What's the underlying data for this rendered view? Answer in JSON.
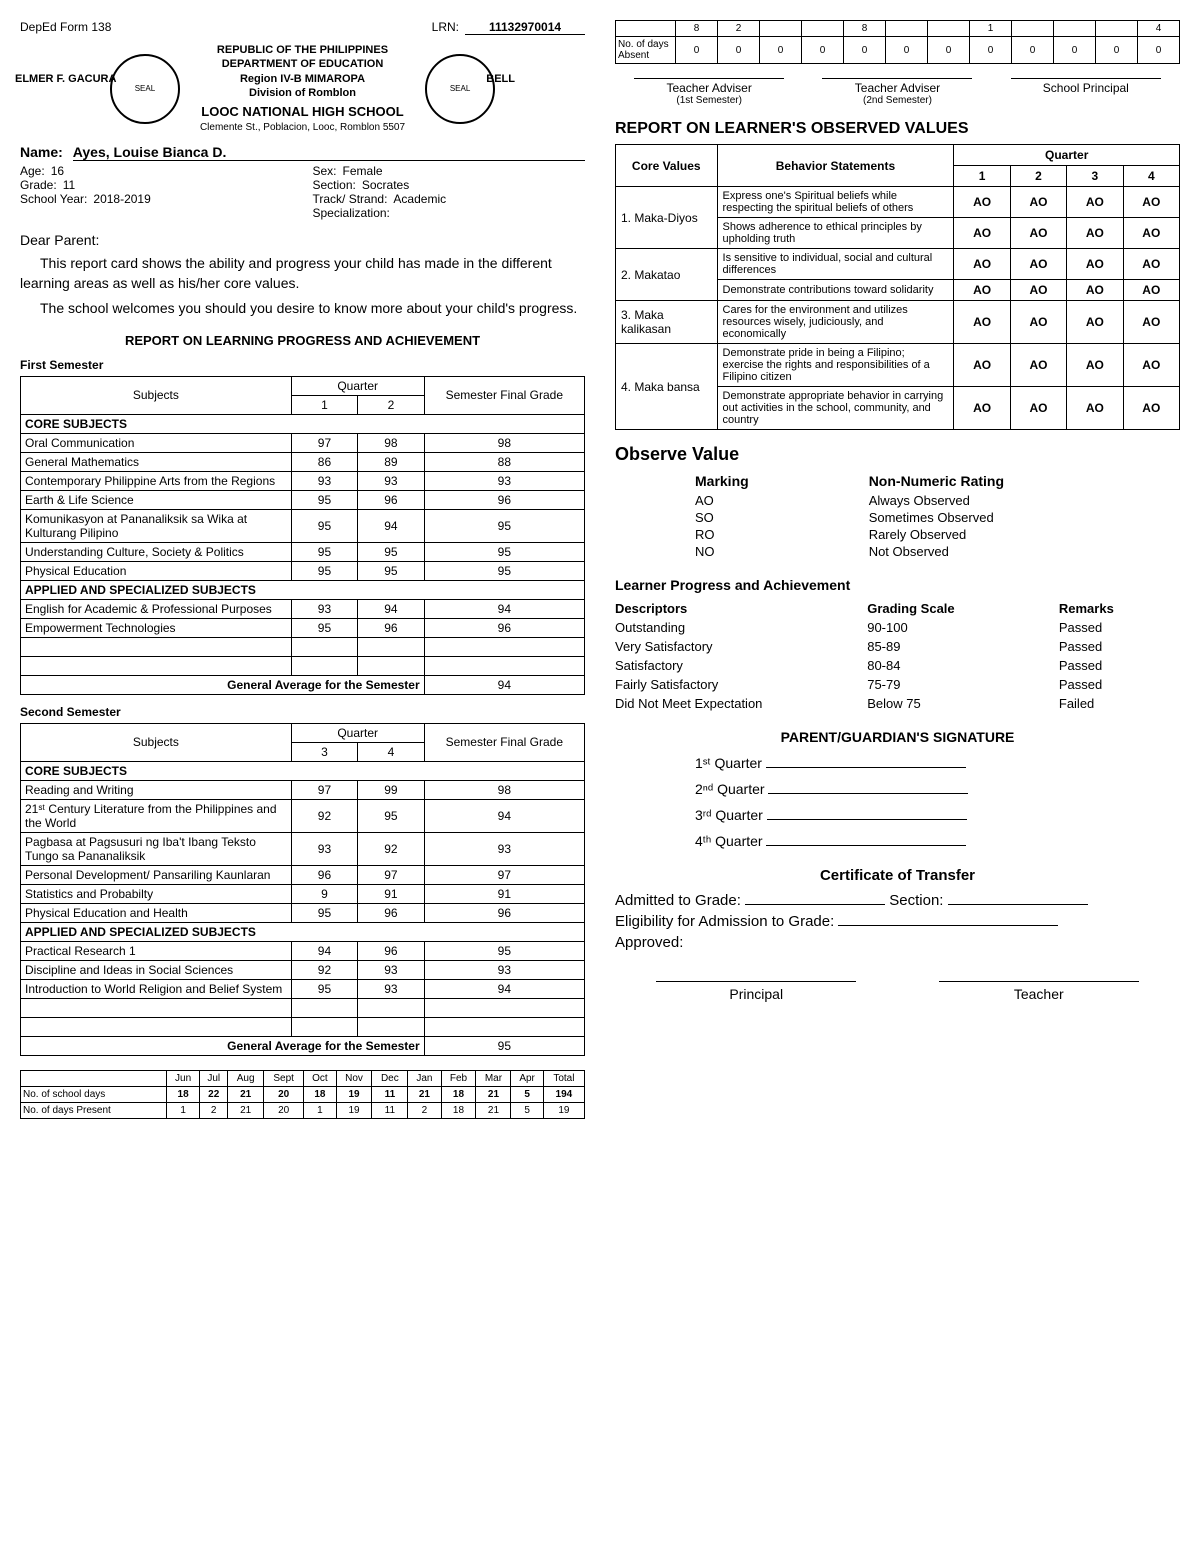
{
  "form": "DepEd Form 138",
  "lrn_label": "LRN:",
  "lrn": "11132970014",
  "republic": "REPUBLIC OF THE PHILIPPINES",
  "dept": "DEPARTMENT OF EDUCATION",
  "region": "Region IV-B MIMAROPA",
  "division": "Division of Romblon",
  "school": "LOOC NATIONAL HIGH SCHOOL",
  "address": "Clemente St., Poblacion, Looc, Romblon 5507",
  "principal_name": "ELMER F. GACURA",
  "teacher_name": "BELL",
  "student": {
    "name_label": "Name:",
    "name": "Ayes, Louise Bianca D.",
    "age_label": "Age:",
    "age": "16",
    "sex_label": "Sex:",
    "sex": "Female",
    "grade_label": "Grade:",
    "grade": "11",
    "section_label": "Section:",
    "section": "Socrates",
    "sy_label": "School Year:",
    "sy": "2018-2019",
    "track_label": "Track/ Strand:",
    "track": "Academic",
    "spec_label": "Specialization:",
    "spec": ""
  },
  "dear": "Dear Parent:",
  "para1": "This report card shows the ability and progress your child has made in the different learning areas as well as his/her core values.",
  "para2": "The school welcomes you should you desire to know more about your child's progress.",
  "rlpa_title": "REPORT ON LEARNING PROGRESS AND ACHIEVEMENT",
  "sem1_label": "First Semester",
  "sem2_label": "Second Semester",
  "cols": {
    "subjects": "Subjects",
    "quarter": "Quarter",
    "q1": "1",
    "q2": "2",
    "q3": "3",
    "q4": "4",
    "final": "Semester Final Grade"
  },
  "core_label": "CORE SUBJECTS",
  "applied_label": "APPLIED AND SPECIALIZED SUBJECTS",
  "gen_avg_label": "General Average for the Semester",
  "sem1": {
    "core": [
      {
        "s": "Oral Communication",
        "a": "97",
        "b": "98",
        "f": "98"
      },
      {
        "s": "General Mathematics",
        "a": "86",
        "b": "89",
        "f": "88"
      },
      {
        "s": "Contemporary Philippine Arts from the Regions",
        "a": "93",
        "b": "93",
        "f": "93"
      },
      {
        "s": "Earth & Life Science",
        "a": "95",
        "b": "96",
        "f": "96"
      },
      {
        "s": "Komunikasyon at Pananaliksik sa Wika at Kulturang Pilipino",
        "a": "95",
        "b": "94",
        "f": "95"
      },
      {
        "s": "Understanding Culture, Society & Politics",
        "a": "95",
        "b": "95",
        "f": "95"
      },
      {
        "s": "Physical Education",
        "a": "95",
        "b": "95",
        "f": "95"
      }
    ],
    "applied": [
      {
        "s": "English for Academic & Professional Purposes",
        "a": "93",
        "b": "94",
        "f": "94"
      },
      {
        "s": "Empowerment Technologies",
        "a": "95",
        "b": "96",
        "f": "96"
      }
    ],
    "avg": "94"
  },
  "sem2": {
    "core": [
      {
        "s": "Reading and Writing",
        "a": "97",
        "b": "99",
        "f": "98"
      },
      {
        "s": "21ˢᵗ Century Literature from the Philippines and the World",
        "a": "92",
        "b": "95",
        "f": "94"
      },
      {
        "s": "Pagbasa at Pagsusuri ng Iba't Ibang Teksto Tungo sa Pananaliksik",
        "a": "93",
        "b": "92",
        "f": "93"
      },
      {
        "s": "Personal Development/ Pansariling Kaunlaran",
        "a": "96",
        "b": "97",
        "f": "97"
      },
      {
        "s": "Statistics and Probabilty",
        "a": "9",
        "b": "91",
        "f": "91"
      },
      {
        "s": "Physical Education and Health",
        "a": "95",
        "b": "96",
        "f": "96"
      }
    ],
    "applied": [
      {
        "s": "Practical Research 1",
        "a": "94",
        "b": "96",
        "f": "95"
      },
      {
        "s": "Discipline and Ideas in Social Sciences",
        "a": "92",
        "b": "93",
        "f": "93"
      },
      {
        "s": "Introduction to World Religion and Belief System",
        "a": "95",
        "b": "93",
        "f": "94"
      }
    ],
    "avg": "95"
  },
  "attend": {
    "months": [
      "Jun",
      "Jul",
      "Aug",
      "Sept",
      "Oct",
      "Nov",
      "Dec",
      "Jan",
      "Feb",
      "Mar",
      "Apr",
      "Total"
    ],
    "school_days_label": "No. of school days",
    "school_days": [
      "18",
      "22",
      "21",
      "20",
      "18",
      "19",
      "11",
      "21",
      "18",
      "21",
      "5",
      "194"
    ],
    "present_label": "No. of days Present",
    "present": [
      "1",
      "2",
      "21",
      "20",
      "1",
      "19",
      "11",
      "2",
      "18",
      "21",
      "5",
      "19"
    ],
    "absent_top": [
      "8",
      "2",
      "",
      "",
      "8",
      "",
      "",
      "1",
      "",
      "",
      "",
      "4"
    ],
    "absent_label": "No. of days Absent",
    "absent": [
      "0",
      "0",
      "0",
      "0",
      "0",
      "0",
      "0",
      "0",
      "0",
      "0",
      "0",
      "0"
    ]
  },
  "advisers": {
    "a1": "Teacher Adviser",
    "a1s": "(1st Semester)",
    "a2": "Teacher Adviser",
    "a2s": "(2nd Semester)",
    "p": "School Principal"
  },
  "values_title": "REPORT ON LEARNER'S OBSERVED VALUES",
  "values_cols": {
    "cv": "Core Values",
    "bs": "Behavior Statements",
    "q": "Quarter"
  },
  "values": [
    {
      "cv": "1. Maka-Diyos",
      "rows": [
        {
          "bs": "Express one's Spiritual beliefs while respecting the spiritual beliefs of others",
          "q": [
            "AO",
            "AO",
            "AO",
            "AO"
          ]
        },
        {
          "bs": "Shows adherence to ethical principles by upholding truth",
          "q": [
            "AO",
            "AO",
            "AO",
            "AO"
          ]
        }
      ]
    },
    {
      "cv": "2. Makatao",
      "rows": [
        {
          "bs": "Is sensitive to individual, social and cultural differences",
          "q": [
            "AO",
            "AO",
            "AO",
            "AO"
          ]
        },
        {
          "bs": "Demonstrate contributions toward solidarity",
          "q": [
            "AO",
            "AO",
            "AO",
            "AO"
          ]
        }
      ]
    },
    {
      "cv": "3. Maka kalikasan",
      "rows": [
        {
          "bs": "Cares for the environment and utilizes resources wisely, judiciously, and economically",
          "q": [
            "AO",
            "AO",
            "AO",
            "AO"
          ]
        }
      ]
    },
    {
      "cv": "4. Maka bansa",
      "rows": [
        {
          "bs": "Demonstrate pride in being a Filipino; exercise the rights and responsibilities of a Filipino citizen",
          "q": [
            "AO",
            "AO",
            "AO",
            "AO"
          ]
        },
        {
          "bs": "Demonstrate appropriate behavior in carrying out activities in the school, community, and country",
          "q": [
            "AO",
            "AO",
            "AO",
            "AO"
          ]
        }
      ]
    }
  ],
  "observe_title": "Observe Value",
  "marking_hd": "Marking",
  "rating_hd": "Non-Numeric Rating",
  "markings": [
    {
      "m": "AO",
      "r": "Always Observed"
    },
    {
      "m": "SO",
      "r": "Sometimes Observed"
    },
    {
      "m": "RO",
      "r": "Rarely Observed"
    },
    {
      "m": "NO",
      "r": "Not Observed"
    }
  ],
  "lpa_title": "Learner Progress and Achievement",
  "lpa_cols": {
    "d": "Descriptors",
    "g": "Grading Scale",
    "r": "Remarks"
  },
  "lpa_rows": [
    {
      "d": "Outstanding",
      "g": "90-100",
      "r": "Passed"
    },
    {
      "d": "Very Satisfactory",
      "g": "85-89",
      "r": "Passed"
    },
    {
      "d": "Satisfactory",
      "g": "80-84",
      "r": "Passed"
    },
    {
      "d": "Fairly Satisfactory",
      "g": "75-79",
      "r": "Passed"
    },
    {
      "d": "Did Not Meet Expectation",
      "g": "Below 75",
      "r": "Failed"
    }
  ],
  "sig_title": "PARENT/GUARDIAN'S SIGNATURE",
  "sig_q": [
    "1ˢᵗ Quarter",
    "2ⁿᵈ Quarter",
    "3ʳᵈ Quarter",
    "4ᵗʰ Quarter"
  ],
  "cert_title": "Certificate of Transfer",
  "cert": {
    "admitted": "Admitted to Grade:",
    "section": "Section:",
    "elig": "Eligibility for Admission to Grade:",
    "approved": "Approved:"
  },
  "footer_sig": {
    "p": "Principal",
    "t": "Teacher"
  }
}
